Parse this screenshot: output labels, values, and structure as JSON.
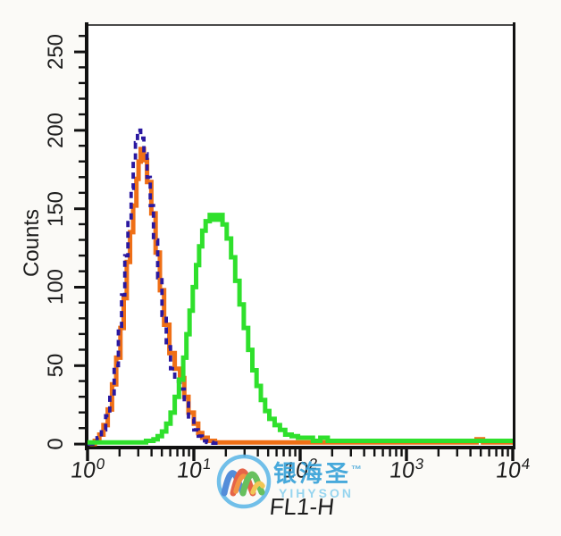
{
  "axes": {
    "y_title": "Counts",
    "x_title": "FL1-H",
    "y_ticklabels": [
      "0",
      "50",
      "100",
      "150",
      "200",
      "250"
    ],
    "x_ticklabels": [
      "10^0",
      "10^1",
      "10^2",
      "10^3",
      "10^4"
    ]
  },
  "watermark": {
    "cn": "银海圣",
    "tm": "™",
    "en": "YIHYSON",
    "circle_color": "#5fb8e8",
    "ribbon_colors": [
      "#3c7fd6",
      "#e25030",
      "#f2862c",
      "#53b94a",
      "#f0c040"
    ]
  },
  "colors": {
    "background": "#fbfaf7",
    "plot_background": "#ffffff",
    "axis": "#111111",
    "top_frame": "#4a4a4a",
    "navy": "#2a18a0",
    "orange": "#ef6f16",
    "green": "#2fe02c"
  },
  "chart_data": {
    "type": "line",
    "subtype": "flow-cytometry-histogram-overlay",
    "title": "",
    "xlabel": "FL1-H",
    "ylabel": "Counts",
    "x_scale": "log10",
    "xlim": [
      1,
      10000
    ],
    "ylim": [
      0,
      265
    ],
    "y_major_ticks": [
      0,
      50,
      100,
      150,
      200,
      250
    ],
    "y_minor_step": 10,
    "x_major_ticks": [
      1,
      10,
      100,
      1000,
      10000
    ],
    "grid": false,
    "legend": false,
    "series": [
      {
        "name": "control-dashed-navy",
        "color": "#2a18a0",
        "dash": [
          7,
          5
        ],
        "width": 3.8,
        "peak": {
          "x": 3.0,
          "count": 200
        },
        "points": [
          [
            1.0,
            0
          ],
          [
            1.12,
            1
          ],
          [
            1.23,
            4
          ],
          [
            1.35,
            9
          ],
          [
            1.48,
            18
          ],
          [
            1.62,
            32
          ],
          [
            1.78,
            50
          ],
          [
            1.95,
            72
          ],
          [
            2.09,
            95
          ],
          [
            2.24,
            120
          ],
          [
            2.4,
            143
          ],
          [
            2.57,
            163
          ],
          [
            2.69,
            180
          ],
          [
            2.82,
            192
          ],
          [
            2.95,
            200
          ],
          [
            3.16,
            195
          ],
          [
            3.39,
            185
          ],
          [
            3.63,
            170
          ],
          [
            3.89,
            152
          ],
          [
            4.17,
            130
          ],
          [
            4.57,
            106
          ],
          [
            5.01,
            82
          ],
          [
            5.5,
            62
          ],
          [
            6.03,
            48
          ],
          [
            6.61,
            40
          ],
          [
            7.41,
            35
          ],
          [
            8.13,
            26
          ],
          [
            8.91,
            16
          ],
          [
            10.0,
            9
          ],
          [
            11.0,
            5
          ],
          [
            12.0,
            2
          ],
          [
            13.2,
            1
          ],
          [
            15.1,
            0.5
          ],
          [
            17.8,
            0
          ]
        ]
      },
      {
        "name": "control-orange",
        "color": "#ef6f16",
        "dash": null,
        "width": 5,
        "peak": {
          "x": 3.2,
          "count": 188
        },
        "points": [
          [
            1.05,
            0
          ],
          [
            1.17,
            2
          ],
          [
            1.29,
            6
          ],
          [
            1.41,
            12
          ],
          [
            1.55,
            22
          ],
          [
            1.7,
            38
          ],
          [
            1.86,
            55
          ],
          [
            2.04,
            74
          ],
          [
            2.19,
            93
          ],
          [
            2.34,
            116
          ],
          [
            2.51,
            135
          ],
          [
            2.69,
            152
          ],
          [
            2.88,
            169
          ],
          [
            3.02,
            180
          ],
          [
            3.16,
            188
          ],
          [
            3.39,
            181
          ],
          [
            3.63,
            167
          ],
          [
            3.98,
            147
          ],
          [
            4.37,
            122
          ],
          [
            4.79,
            98
          ],
          [
            5.25,
            76
          ],
          [
            5.89,
            58
          ],
          [
            6.61,
            48
          ],
          [
            7.41,
            42
          ],
          [
            8.13,
            30
          ],
          [
            8.91,
            20
          ],
          [
            10.0,
            13
          ],
          [
            11.0,
            7
          ],
          [
            12.0,
            4
          ],
          [
            13.5,
            2
          ],
          [
            15.8,
            1
          ],
          [
            25.1,
            1
          ],
          [
            63.1,
            1
          ],
          [
            251,
            1
          ],
          [
            1000,
            1
          ],
          [
            3980,
            1
          ],
          [
            4570,
            3
          ],
          [
            5250,
            1
          ],
          [
            7940,
            1
          ],
          [
            10000,
            1
          ]
        ]
      },
      {
        "name": "sample-green",
        "color": "#2fe02c",
        "dash": null,
        "width": 5,
        "peak": {
          "x": 15,
          "count": 146
        },
        "points": [
          [
            1.0,
            1
          ],
          [
            1.58,
            1
          ],
          [
            2.51,
            1
          ],
          [
            3.55,
            2
          ],
          [
            4.17,
            3
          ],
          [
            4.57,
            5
          ],
          [
            5.01,
            8
          ],
          [
            5.5,
            13
          ],
          [
            6.03,
            20
          ],
          [
            6.61,
            30
          ],
          [
            7.24,
            41
          ],
          [
            7.94,
            55
          ],
          [
            8.51,
            70
          ],
          [
            9.12,
            85
          ],
          [
            9.77,
            100
          ],
          [
            10.5,
            114
          ],
          [
            11.2,
            126
          ],
          [
            12.0,
            136
          ],
          [
            12.9,
            142
          ],
          [
            14.1,
            146
          ],
          [
            15.5,
            143
          ],
          [
            17.0,
            146
          ],
          [
            18.6,
            140
          ],
          [
            20.4,
            131
          ],
          [
            22.4,
            119
          ],
          [
            24.5,
            104
          ],
          [
            26.9,
            89
          ],
          [
            29.5,
            74
          ],
          [
            32.4,
            60
          ],
          [
            35.5,
            47
          ],
          [
            38.9,
            37
          ],
          [
            42.7,
            28
          ],
          [
            46.8,
            21
          ],
          [
            51.3,
            16
          ],
          [
            57.5,
            12
          ],
          [
            64.6,
            9
          ],
          [
            72.4,
            6
          ],
          [
            83.2,
            5
          ],
          [
            95.5,
            4
          ],
          [
            112,
            4
          ],
          [
            132,
            2
          ],
          [
            155,
            4
          ],
          [
            182,
            2
          ],
          [
            251,
            2
          ],
          [
            398,
            2
          ],
          [
            631,
            2
          ],
          [
            1000,
            2
          ],
          [
            1580,
            2
          ],
          [
            2510,
            2
          ],
          [
            3980,
            2
          ],
          [
            6310,
            2
          ],
          [
            10000,
            2
          ]
        ]
      }
    ]
  }
}
